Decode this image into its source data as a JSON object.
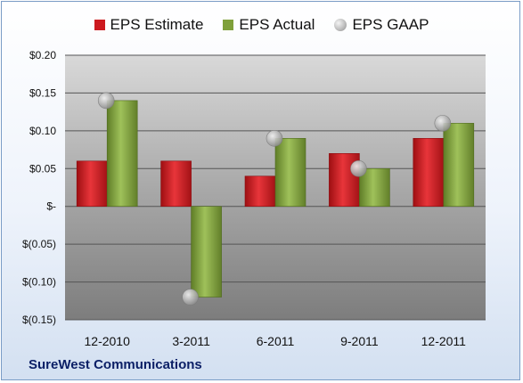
{
  "company": "SureWest Communications",
  "legend": {
    "estimate": "EPS Estimate",
    "actual": "EPS Actual",
    "gaap": "EPS GAAP"
  },
  "colors": {
    "estimate": "#cc1a1f",
    "actual": "#7fa03a",
    "gaap": "#b0b0b0"
  },
  "chart_data": {
    "type": "bar",
    "categories": [
      "12-2010",
      "3-2011",
      "6-2011",
      "9-2011",
      "12-2011"
    ],
    "series": [
      {
        "name": "EPS Estimate",
        "values": [
          0.06,
          0.06,
          0.04,
          0.07,
          0.09
        ]
      },
      {
        "name": "EPS Actual",
        "values": [
          0.14,
          -0.12,
          0.09,
          0.05,
          0.11
        ]
      },
      {
        "name": "EPS GAAP",
        "values": [
          0.14,
          -0.12,
          0.09,
          0.05,
          0.11
        ]
      }
    ],
    "ylim": [
      -0.15,
      0.2
    ],
    "yticks": [
      0.2,
      0.15,
      0.1,
      0.05,
      0,
      -0.05,
      -0.1,
      -0.15
    ],
    "ytick_labels": [
      "$0.20",
      "$0.15",
      "$0.10",
      "$0.05",
      "$-",
      "$(0.05)",
      "$(0.10)",
      "$(0.15)"
    ],
    "legend_position": "top",
    "grid": true
  }
}
